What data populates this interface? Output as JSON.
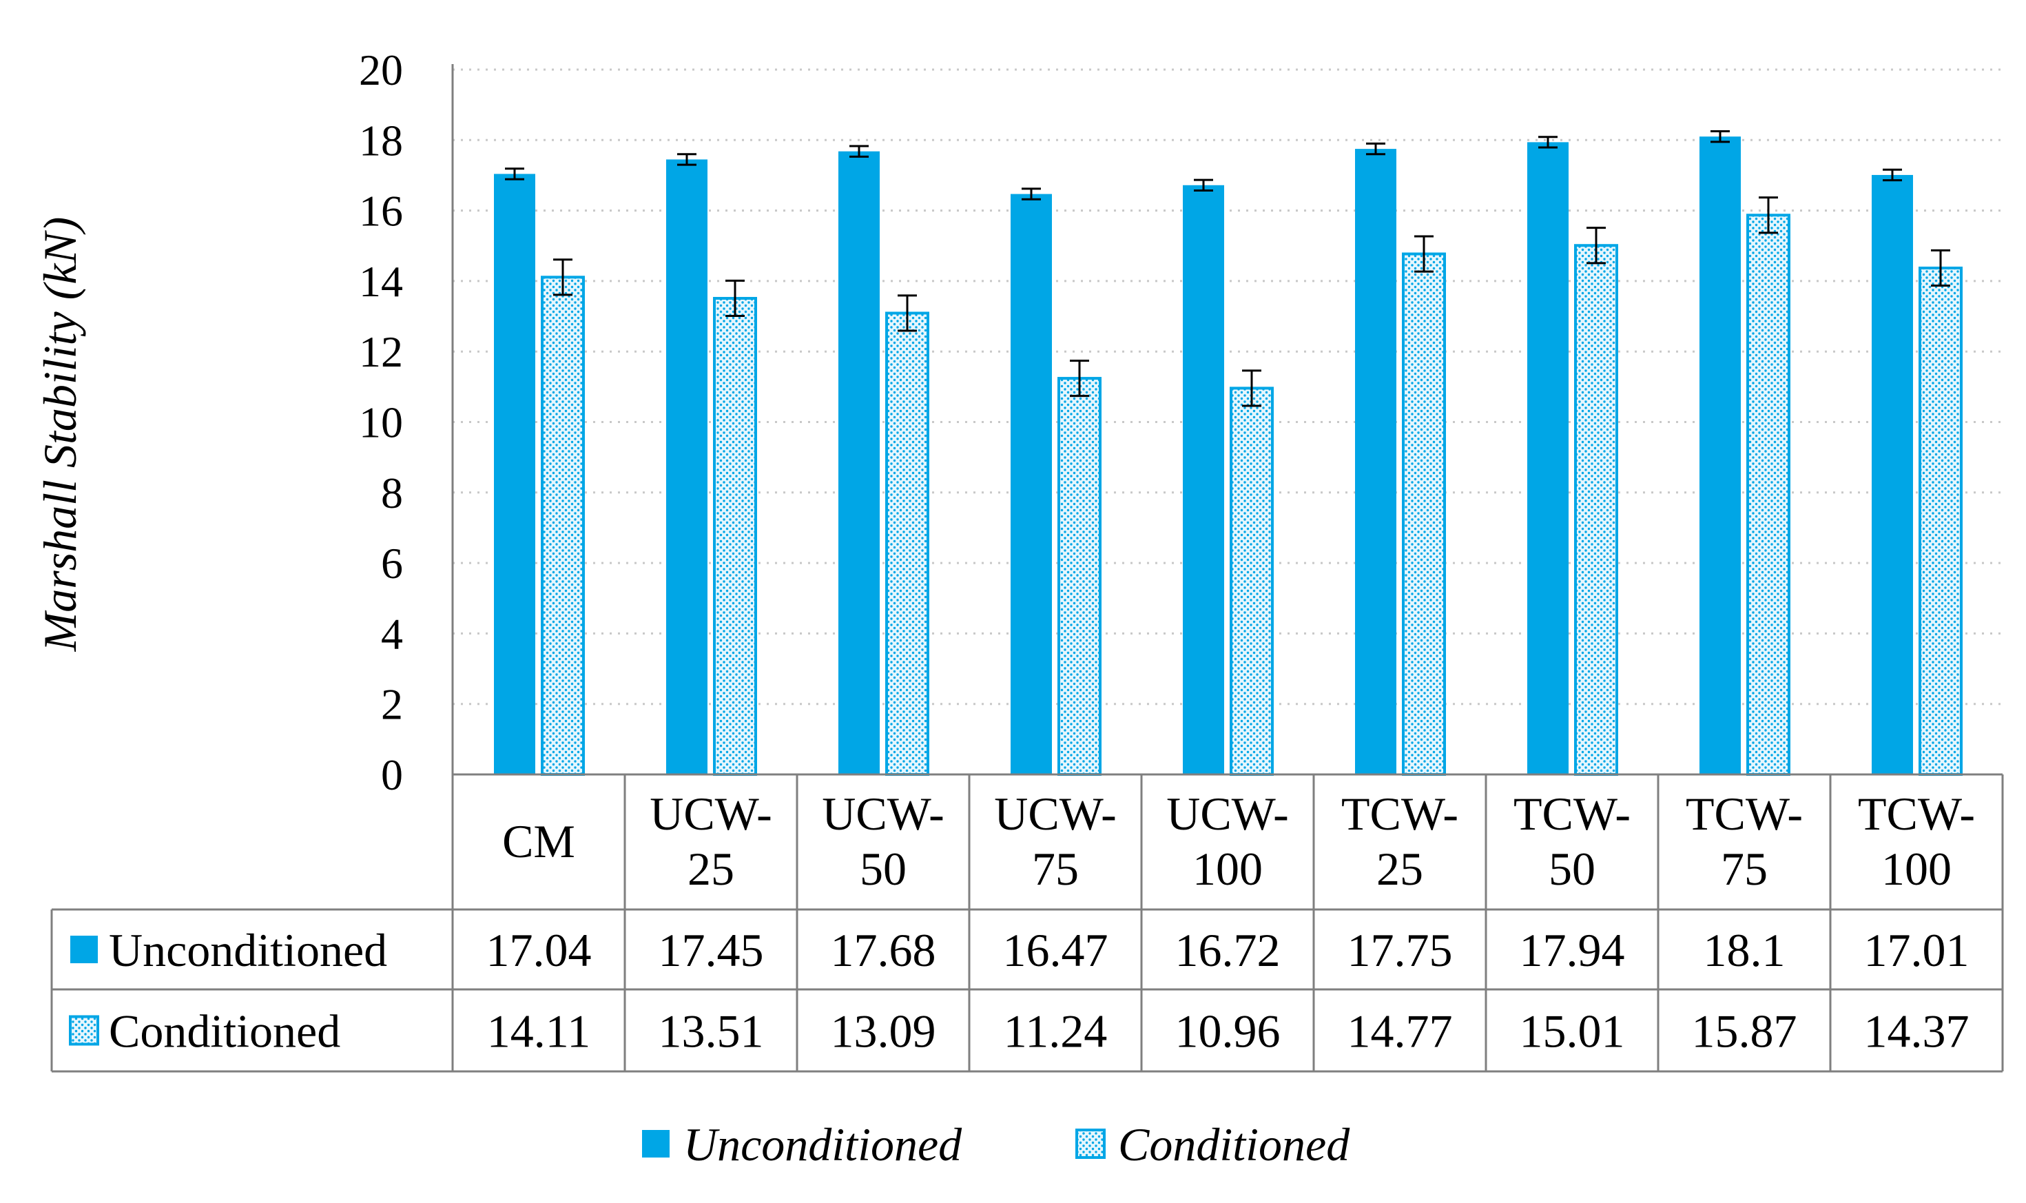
{
  "chart_data": {
    "type": "bar",
    "ylabel": "Marshall Stability (kN)",
    "ylim": [
      0,
      20
    ],
    "yticks": [
      0,
      2,
      4,
      6,
      8,
      10,
      12,
      14,
      16,
      18,
      20
    ],
    "grid": true,
    "categories": [
      [
        "CM"
      ],
      [
        "UCW-",
        "25"
      ],
      [
        "UCW-",
        "50"
      ],
      [
        "UCW-",
        "75"
      ],
      [
        "UCW-",
        "100"
      ],
      [
        "TCW-",
        "25"
      ],
      [
        "TCW-",
        "50"
      ],
      [
        "TCW-",
        "75"
      ],
      [
        "TCW-",
        "100"
      ]
    ],
    "series": [
      {
        "name": "Unconditioned",
        "color": "#00a6e6",
        "pattern": "solid",
        "values": [
          17.04,
          17.45,
          17.68,
          16.47,
          16.72,
          17.75,
          17.94,
          18.1,
          17.01
        ],
        "value_labels": [
          "17.04",
          "17.45",
          "17.68",
          "16.47",
          "16.72",
          "17.75",
          "17.94",
          "18.1",
          "17.01"
        ],
        "errors": [
          0.15,
          0.15,
          0.15,
          0.15,
          0.15,
          0.15,
          0.15,
          0.15,
          0.15
        ]
      },
      {
        "name": "Conditioned",
        "color": "#00a6e6",
        "pattern": "dotted",
        "values": [
          14.11,
          13.51,
          13.09,
          11.24,
          10.96,
          14.77,
          15.01,
          15.87,
          14.37
        ],
        "value_labels": [
          "14.11",
          "13.51",
          "13.09",
          "11.24",
          "10.96",
          "14.77",
          "15.01",
          "15.87",
          "14.37"
        ],
        "errors": [
          0.5,
          0.5,
          0.5,
          0.5,
          0.5,
          0.5,
          0.5,
          0.5,
          0.5
        ]
      }
    ],
    "data_table": true,
    "legend_placement": "bottom"
  }
}
